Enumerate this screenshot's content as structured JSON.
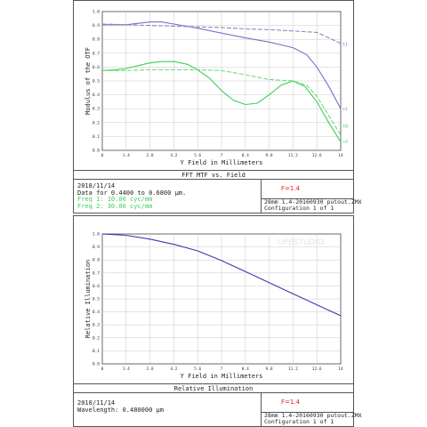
{
  "colors": {
    "ti": "#7b6fc4",
    "si": "#9187ba",
    "t0": "#3ccf5a",
    "s0": "#6fd97e",
    "illum": "#3a3ab0",
    "fnum": "#e02020"
  },
  "top": {
    "caption": "FFT MTF vs. Field",
    "date": "2018/11/14",
    "wavelength_line": "Data for 0.4400 to 0.6800 µm.",
    "freq1": "Freq 1:   10.00 cyc/mm",
    "freq2": "Freq 2:   30.00 cyc/mm",
    "fnum": "F=1.4",
    "file": "28mm 1.4-20160930 putout.ZMX",
    "config": "Configuration 1 of 1"
  },
  "bottom": {
    "caption": "Relative Illumination",
    "date": "2018/11/14",
    "wavelength_line": "Wavelength: 0.480000 µm",
    "fnum": "F=1.4",
    "file": "28mm 1.4-20160930 putout.ZMX",
    "config": "Configuration 1 of 1",
    "watermark": "UPESTUDIO"
  },
  "chart_data": [
    {
      "type": "line",
      "xlabel": "Y Field in Millimeters",
      "ylabel": "Modulus of the OTF",
      "xlim": [
        0,
        14
      ],
      "ylim": [
        0,
        1.0
      ],
      "x_ticks": [
        "0",
        "1.4",
        "2.8",
        "4.2",
        "5.6",
        "7",
        "8.4",
        "9.8",
        "11.2",
        "12.6",
        "14"
      ],
      "y_ticks": [
        "0.0",
        "0.1",
        "0.2",
        "0.3",
        "0.4",
        "0.5",
        "0.6",
        "0.7",
        "0.8",
        "0.9",
        "1.0"
      ],
      "grid": true,
      "series": [
        {
          "name": "Ti",
          "color_key": "ti",
          "dash": false,
          "x": [
            0,
            1.4,
            2.8,
            3.5,
            4.2,
            5.6,
            7,
            8.4,
            9.8,
            11.2,
            12.0,
            12.6,
            13.3,
            14
          ],
          "y": [
            0.905,
            0.905,
            0.925,
            0.925,
            0.91,
            0.88,
            0.845,
            0.81,
            0.78,
            0.74,
            0.69,
            0.6,
            0.46,
            0.3
          ]
        },
        {
          "name": "Si",
          "color_key": "si",
          "dash": true,
          "x": [
            0,
            1.4,
            2.8,
            4.2,
            5.6,
            7,
            8.4,
            9.8,
            11.2,
            12.6,
            13.3,
            14
          ],
          "y": [
            0.91,
            0.905,
            0.9,
            0.895,
            0.89,
            0.885,
            0.875,
            0.87,
            0.86,
            0.85,
            0.81,
            0.77
          ]
        },
        {
          "name": "T0",
          "color_key": "t0",
          "dash": false,
          "x": [
            0,
            0.7,
            1.4,
            2.1,
            2.8,
            3.5,
            4.2,
            5.0,
            5.6,
            6.3,
            7,
            7.7,
            8.4,
            9.1,
            9.8,
            10.5,
            11.2,
            11.9,
            12.6,
            13.3,
            14
          ],
          "y": [
            0.575,
            0.58,
            0.59,
            0.61,
            0.63,
            0.64,
            0.64,
            0.62,
            0.58,
            0.52,
            0.43,
            0.36,
            0.33,
            0.34,
            0.4,
            0.47,
            0.5,
            0.46,
            0.35,
            0.2,
            0.06
          ]
        },
        {
          "name": "S0",
          "color_key": "s0",
          "dash": true,
          "x": [
            0,
            1.4,
            2.8,
            4.2,
            5.6,
            7,
            8.4,
            9.8,
            11.2,
            12.0,
            12.6,
            13.3,
            14
          ],
          "y": [
            0.575,
            0.575,
            0.58,
            0.58,
            0.58,
            0.575,
            0.545,
            0.51,
            0.5,
            0.47,
            0.39,
            0.25,
            0.11
          ]
        }
      ],
      "series_labels": [
        "Ti",
        "Si",
        "T0",
        "S0"
      ]
    },
    {
      "type": "line",
      "xlabel": "Y Field in Millimeters",
      "ylabel": "Relative Illumination",
      "xlim": [
        0,
        14
      ],
      "ylim": [
        0,
        1.0
      ],
      "x_ticks": [
        "0",
        "1.4",
        "2.8",
        "4.2",
        "5.6",
        "7",
        "8.4",
        "9.8",
        "11.2",
        "12.6",
        "14"
      ],
      "y_ticks": [
        "0.0",
        "0.1",
        "0.2",
        "0.3",
        "0.4",
        "0.5",
        "0.6",
        "0.7",
        "0.8",
        "0.9",
        "1.0"
      ],
      "grid": true,
      "series": [
        {
          "color_key": "illum",
          "dash": false,
          "x": [
            0,
            1.4,
            2.8,
            4.2,
            5.6,
            7,
            8.4,
            9.8,
            11.2,
            12.6,
            14
          ],
          "y": [
            1.0,
            0.99,
            0.96,
            0.92,
            0.87,
            0.795,
            0.71,
            0.625,
            0.54,
            0.455,
            0.37
          ]
        }
      ]
    }
  ]
}
